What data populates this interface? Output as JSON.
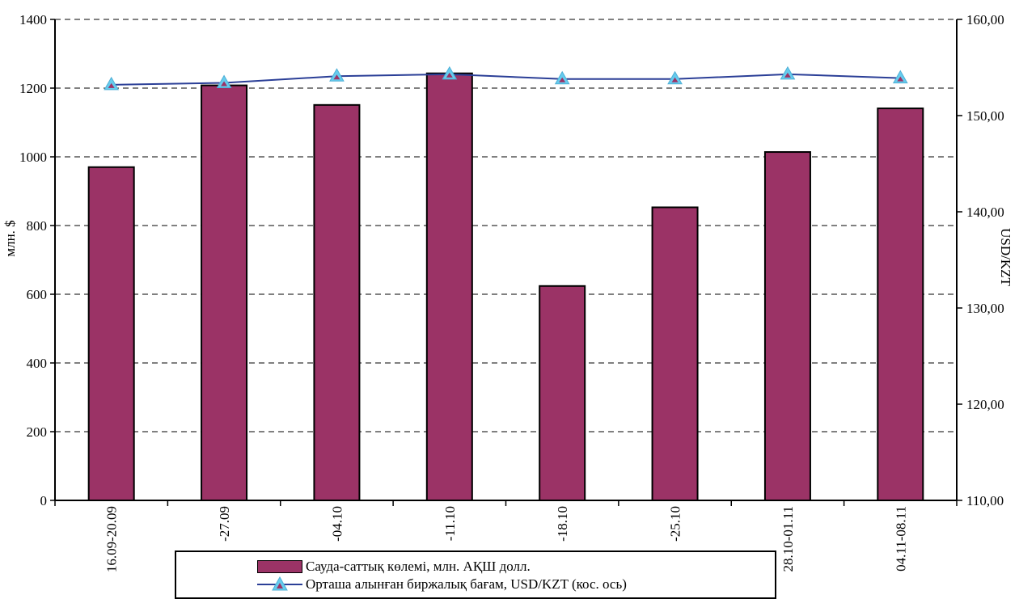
{
  "chart_data": {
    "type": "bar+line",
    "categories": [
      "16.09-20.09",
      "-27.09",
      "-04.10",
      "-11.10",
      "-18.10",
      "-25.10",
      "28.10-01.11",
      "04.11-08.11"
    ],
    "series": [
      {
        "name": "Сауда-саттық көлемі, млн. АҚШ долл.",
        "type": "bar",
        "axis": "left",
        "color": "#9B3366",
        "values": [
          970,
          1208,
          1151,
          1243,
          624,
          853,
          1014,
          1141
        ]
      },
      {
        "name": "Орташа алынған биржалық бағам, USD/KZT (кос. ось)",
        "type": "line",
        "axis": "right",
        "color": "#2B3F97",
        "marker_color": "#66CCEE",
        "marker_inner_color": "#9B3366",
        "values": [
          153.2,
          153.4,
          154.1,
          154.3,
          153.8,
          153.8,
          154.3,
          153.9
        ]
      }
    ],
    "ylabel": "млн. $",
    "y2label": "USD/KZT",
    "ylim": [
      0,
      1400
    ],
    "y2lim": [
      110,
      160
    ],
    "yticks": [
      "0",
      "200",
      "400",
      "600",
      "800",
      "1000",
      "1200",
      "1400"
    ],
    "y2ticks": [
      "110,00",
      "120,00",
      "130,00",
      "140,00",
      "150,00",
      "160,00"
    ],
    "grid": true,
    "legend_position": "bottom"
  }
}
